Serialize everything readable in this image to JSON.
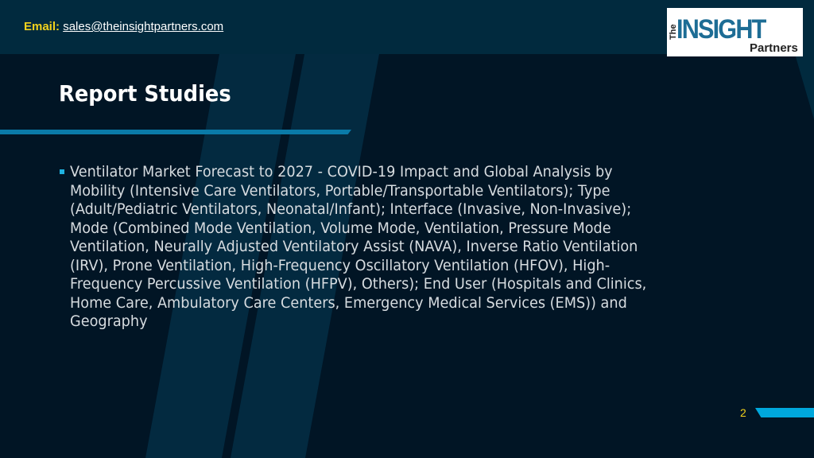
{
  "header": {
    "email_label": "Email:",
    "email_address": "sales@theinsightpartners.com",
    "logo_text": "The INSIGHT Partners"
  },
  "slide": {
    "title": "Report Studies",
    "bullet_lines": [
      "Ventilator Market Forecast to 2027 - COVID-19 Impact and Global Analysis by",
      "Mobility (Intensive Care Ventilators, Portable/Transportable Ventilators); Type",
      "(Adult/Pediatric Ventilators, Neonatal/Infant); Interface (Invasive, Non-Invasive);",
      "Mode (Combined Mode Ventilation, Volume Mode, Ventilation, Pressure Mode",
      "Ventilation, Neurally Adjusted Ventilatory Assist (NAVA), Inverse Ratio Ventilation",
      "(IRV), Prone Ventilation, High-Frequency Oscillatory Ventilation (HFOV), High-",
      "Frequency Percussive Ventilation (HFPV), Others); End User (Hospitals and Clinics,",
      "Home Care, Ambulatory Care Centers, Emergency Medical Services (EMS)) and",
      "Geography"
    ],
    "page_number": "2"
  },
  "colors": {
    "header_bg": "#012a3e",
    "body_bg": "#011525",
    "accent": "#00a8dd",
    "email_label": "#f3d21c"
  }
}
